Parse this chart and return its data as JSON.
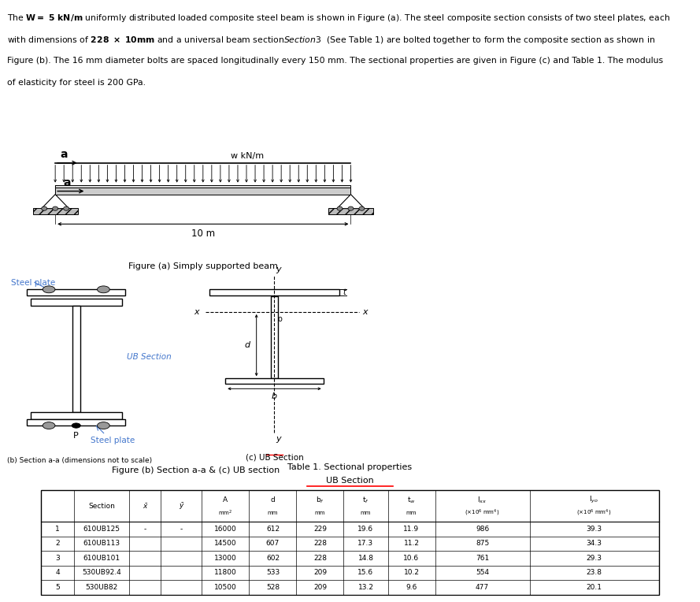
{
  "fig_a_caption": "Figure (a) Simply supported beam",
  "fig_b_caption": "Figure (b) Section a-a & (c) UB section",
  "steel_plate_label": "Steel plate",
  "ub_section_label": "UB Section",
  "ub_section_c_label": "(c) UB Section",
  "section_aa_label": "(b) Section a-a (dimensions not to scale)",
  "beam_length_label": "10 m",
  "w_label": "w kN/m",
  "a_label": "a",
  "table_title": "Table 1. Sectional properties",
  "table_subtitle": "UB Section",
  "table_data": [
    [
      "1",
      "610UB125",
      "-",
      "-",
      "16000",
      "612",
      "229",
      "19.6",
      "11.9",
      "986",
      "39.3"
    ],
    [
      "2",
      "610UB113",
      "",
      "",
      "14500",
      "607",
      "228",
      "17.3",
      "11.2",
      "875",
      "34.3"
    ],
    [
      "3",
      "610UB101",
      "",
      "",
      "13000",
      "602",
      "228",
      "14.8",
      "10.6",
      "761",
      "29.3"
    ],
    [
      "4",
      "530UB92.4",
      "",
      "",
      "11800",
      "533",
      "209",
      "15.6",
      "10.2",
      "554",
      "23.8"
    ],
    [
      "5",
      "530UB82",
      "",
      "",
      "10500",
      "528",
      "209",
      "13.2",
      "9.6",
      "477",
      "20.1"
    ]
  ],
  "background_color": "#ffffff",
  "text_color": "#000000",
  "blue_color": "#4477cc",
  "red_color": "#ff0000"
}
